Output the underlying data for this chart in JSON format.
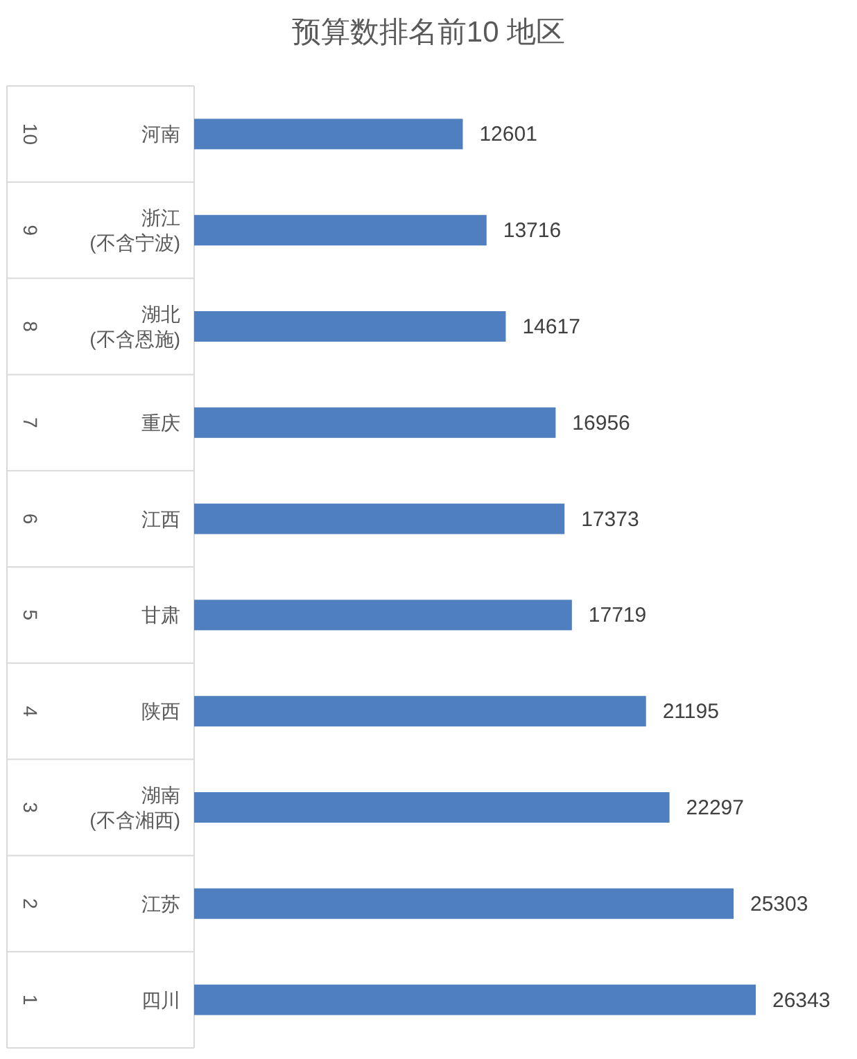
{
  "chart_data": {
    "type": "bar",
    "orientation": "horizontal",
    "title": "预算数排名前10 地区",
    "categories": [
      "河南",
      "浙江\n(不含宁波)",
      "湖北\n(不含恩施)",
      "重庆",
      "江西",
      "甘肃",
      "陕西",
      "湖南\n(不含湘西)",
      "江苏",
      "四川"
    ],
    "values": [
      12601,
      13716,
      14617,
      16956,
      17373,
      17719,
      21195,
      22297,
      25303,
      26343
    ],
    "color": "#4f7fbf",
    "data_labels": true,
    "annotations": [
      "10",
      "9",
      "8",
      "7",
      "6",
      "5",
      "4",
      "3",
      "2",
      "1"
    ]
  }
}
